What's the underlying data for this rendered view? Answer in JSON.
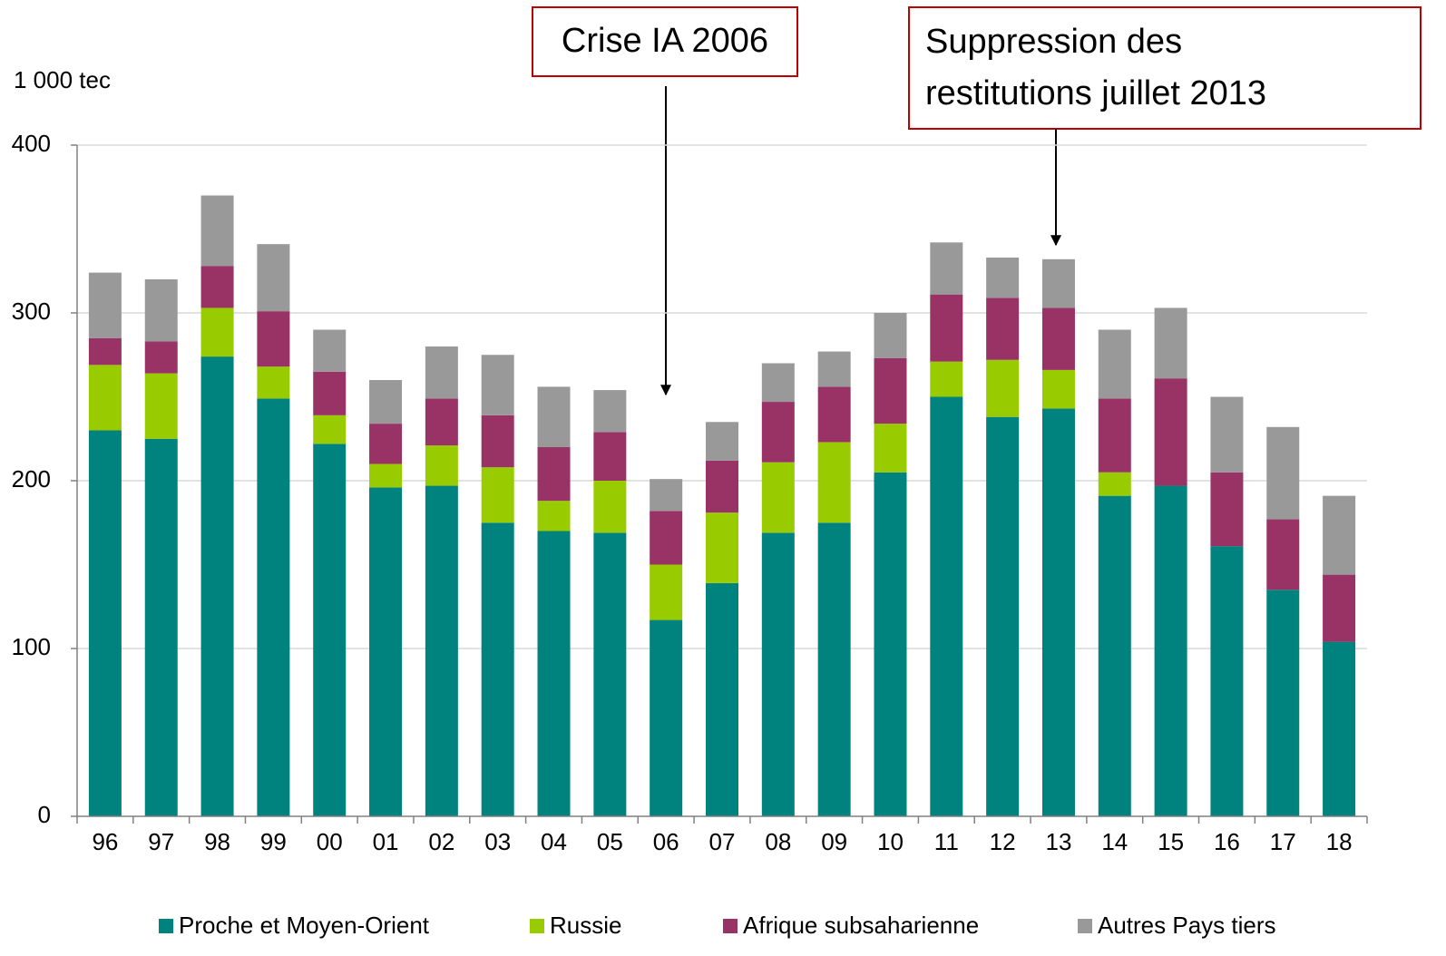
{
  "chart_data": {
    "type": "stacked_bar",
    "y_label": "1 000 tec",
    "categories": [
      "96",
      "97",
      "98",
      "99",
      "00",
      "01",
      "02",
      "03",
      "04",
      "05",
      "06",
      "07",
      "08",
      "09",
      "10",
      "11",
      "12",
      "13",
      "14",
      "15",
      "16",
      "17",
      "18"
    ],
    "series": [
      {
        "name": "Proche et Moyen-Orient",
        "color": "#00827f",
        "values": [
          230,
          225,
          274,
          249,
          222,
          196,
          197,
          175,
          170,
          169,
          117,
          139,
          169,
          175,
          205,
          250,
          238,
          243,
          191,
          197,
          161,
          135,
          104
        ]
      },
      {
        "name": "Russie",
        "color": "#99cc00",
        "values": [
          39,
          39,
          29,
          19,
          17,
          14,
          24,
          33,
          18,
          31,
          33,
          42,
          42,
          48,
          29,
          21,
          34,
          23,
          14,
          0,
          0,
          0,
          0
        ]
      },
      {
        "name": "Afrique subsaharienne",
        "color": "#993366",
        "values": [
          16,
          19,
          25,
          33,
          26,
          24,
          28,
          31,
          32,
          29,
          32,
          31,
          36,
          33,
          39,
          40,
          37,
          37,
          44,
          64,
          44,
          42,
          40
        ]
      },
      {
        "name": "Autres Pays tiers",
        "color": "#999999",
        "values": [
          39,
          37,
          42,
          40,
          25,
          26,
          31,
          36,
          36,
          25,
          19,
          23,
          23,
          21,
          27,
          31,
          24,
          29,
          41,
          42,
          45,
          55,
          47
        ]
      }
    ],
    "ylim": [
      0,
      400
    ],
    "yticks": [
      0,
      100,
      200,
      300,
      400
    ],
    "grid": true,
    "annotations": [
      {
        "lines": [
          "Crise IA 2006"
        ]
      },
      {
        "lines": [
          "Suppression des",
          "restitutions juillet 2013"
        ]
      }
    ]
  }
}
